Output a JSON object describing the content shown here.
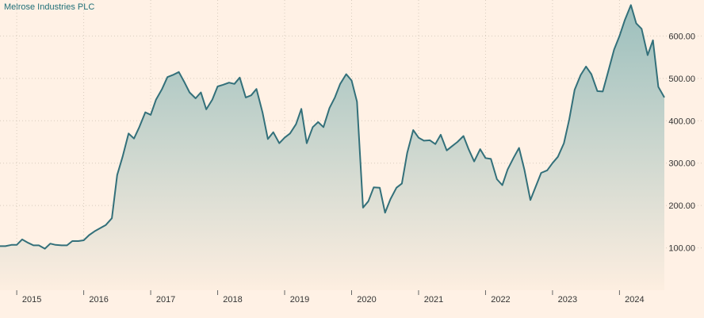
{
  "chart_data": {
    "type": "area",
    "title": "Melrose Industries PLC",
    "ylim": [
      0,
      685
    ],
    "xlim": [
      2014.75,
      2024.67
    ],
    "yticks": [
      {
        "value": 100,
        "label": "100.00"
      },
      {
        "value": 200,
        "label": "200.00"
      },
      {
        "value": 300,
        "label": "300.00"
      },
      {
        "value": 400,
        "label": "400.00"
      },
      {
        "value": 500,
        "label": "500.00"
      },
      {
        "value": 600,
        "label": "600.00"
      }
    ],
    "xticks": [
      {
        "value": 2015,
        "label": "2015"
      },
      {
        "value": 2016,
        "label": "2016"
      },
      {
        "value": 2017,
        "label": "2017"
      },
      {
        "value": 2018,
        "label": "2018"
      },
      {
        "value": 2019,
        "label": "2019"
      },
      {
        "value": 2020,
        "label": "2020"
      },
      {
        "value": 2021,
        "label": "2021"
      },
      {
        "value": 2022,
        "label": "2022"
      },
      {
        "value": 2023,
        "label": "2023"
      },
      {
        "value": 2024,
        "label": "2024"
      }
    ],
    "grid": true,
    "colors": {
      "line": "#33707a",
      "fill_top": "#9bbfbd",
      "fill_bottom": "#fdeee0",
      "background": "#fff1e5"
    },
    "series": [
      {
        "x": [
          2014.75,
          2014.83,
          2014.92,
          2015.0,
          2015.08,
          2015.17,
          2015.25,
          2015.33,
          2015.42,
          2015.5,
          2015.58,
          2015.67,
          2015.75,
          2015.83,
          2015.92,
          2016.0,
          2016.08,
          2016.17,
          2016.25,
          2016.33,
          2016.42,
          2016.5,
          2016.58,
          2016.67,
          2016.75,
          2016.83,
          2016.92,
          2017.0,
          2017.08,
          2017.17,
          2017.25,
          2017.33,
          2017.42,
          2017.5,
          2017.58,
          2017.67,
          2017.75,
          2017.83,
          2017.92,
          2018.0,
          2018.08,
          2018.17,
          2018.25,
          2018.33,
          2018.42,
          2018.5,
          2018.58,
          2018.67,
          2018.75,
          2018.83,
          2018.92,
          2019.0,
          2019.08,
          2019.17,
          2019.25,
          2019.33,
          2019.42,
          2019.5,
          2019.58,
          2019.67,
          2019.75,
          2019.83,
          2019.92,
          2020.0,
          2020.08,
          2020.17,
          2020.25,
          2020.33,
          2020.42,
          2020.5,
          2020.58,
          2020.67,
          2020.75,
          2020.83,
          2020.92,
          2021.0,
          2021.08,
          2021.17,
          2021.25,
          2021.33,
          2021.42,
          2021.5,
          2021.58,
          2021.67,
          2021.75,
          2021.83,
          2021.92,
          2022.0,
          2022.08,
          2022.17,
          2022.25,
          2022.33,
          2022.42,
          2022.5,
          2022.58,
          2022.67,
          2022.75,
          2022.83,
          2022.92,
          2023.0,
          2023.08,
          2023.17,
          2023.25,
          2023.33,
          2023.42,
          2023.5,
          2023.58,
          2023.67,
          2023.75,
          2023.83,
          2023.92,
          2024.0,
          2024.08,
          2024.17,
          2024.25,
          2024.33,
          2024.42,
          2024.5,
          2024.58,
          2024.67
        ],
        "values": [
          104,
          104,
          107,
          107,
          120,
          112,
          106,
          106,
          98,
          110,
          107,
          106,
          106,
          116,
          116,
          118,
          130,
          140,
          147,
          154,
          170,
          272,
          315,
          370,
          358,
          385,
          420,
          414,
          450,
          475,
          503,
          508,
          515,
          492,
          467,
          453,
          467,
          427,
          450,
          481,
          485,
          490,
          487,
          502,
          455,
          460,
          475,
          420,
          357,
          373,
          347,
          360,
          370,
          392,
          428,
          347,
          385,
          397,
          385,
          430,
          455,
          487,
          510,
          495,
          445,
          195,
          210,
          243,
          242,
          183,
          215,
          242,
          252,
          324,
          378,
          360,
          353,
          354,
          345,
          367,
          330,
          340,
          350,
          364,
          332,
          304,
          333,
          312,
          310,
          262,
          248,
          285,
          313,
          336,
          285,
          213,
          245,
          277,
          283,
          300,
          315,
          347,
          403,
          473,
          508,
          528,
          510,
          470,
          469,
          515,
          568,
          600,
          638,
          673,
          630,
          617,
          555,
          590,
          480,
          455
        ]
      }
    ]
  }
}
